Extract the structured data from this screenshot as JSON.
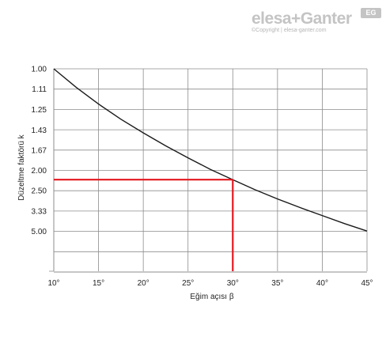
{
  "logo": {
    "wordmark": "elesa+Ganter",
    "badge": "EG",
    "copyright": "©Copyright | elesa-ganter.com"
  },
  "colors": {
    "curve": "#1a1a1a",
    "grid": "#8c8c8c",
    "highlight": "#e4171f",
    "logo": "#c4c4c4"
  },
  "chart_data": {
    "type": "line",
    "xlabel": "Eğim açısı β",
    "ylabel": "Düzeltme faktörü k",
    "xlim": [
      10,
      45
    ],
    "x_ticks": [
      10,
      15,
      20,
      25,
      30,
      35,
      40,
      45
    ],
    "x_tick_labels": [
      "10°",
      "15°",
      "20°",
      "25°",
      "30°",
      "35°",
      "40°",
      "45°"
    ],
    "y_ticks": [
      1.0,
      1.11,
      1.25,
      1.43,
      1.67,
      2.0,
      2.5,
      3.33,
      5.0
    ],
    "y_tick_labels": [
      "1.00",
      "1.11",
      "1.25",
      "1.43",
      "1.67",
      "2.00",
      "2.50",
      "3.33",
      "5.00"
    ],
    "y_scale": "reciprocal",
    "ylim": [
      1.0,
      "infinity"
    ],
    "grid": true,
    "series": [
      {
        "x": [
          10,
          12.5,
          15,
          17.5,
          20,
          22.5,
          25,
          27.5,
          30,
          32.5,
          35,
          37.5,
          40,
          42.5,
          45
        ],
        "y": [
          1.0,
          1.1,
          1.21,
          1.33,
          1.46,
          1.61,
          1.78,
          1.98,
          2.2,
          2.47,
          2.78,
          3.15,
          3.6,
          4.2,
          4.96
        ]
      }
    ],
    "annotation": {
      "x": 30,
      "y": 2.2,
      "style": "red crosshair to both axes"
    }
  }
}
